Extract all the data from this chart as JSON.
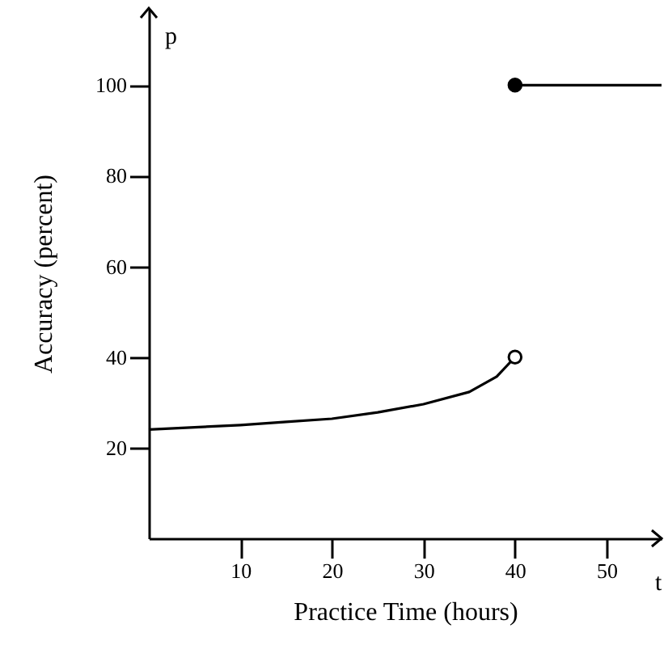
{
  "chart_data": {
    "type": "line",
    "xlabel": "Practice Time (hours)",
    "ylabel": "Accuracy (percent)",
    "annotations": [
      "p",
      "t"
    ],
    "xlim": [
      0,
      56
    ],
    "ylim": [
      0,
      117
    ],
    "xticks": [
      10,
      20,
      30,
      40,
      50
    ],
    "yticks": [
      20,
      40,
      60,
      80,
      100
    ],
    "grid": false,
    "series": [
      {
        "type": "line",
        "color": "#000000",
        "marker": "none",
        "x": [
          0,
          5,
          10,
          15,
          20,
          25,
          30,
          35,
          38,
          40
        ],
        "values": [
          24,
          24.5,
          25,
          25.7,
          26.4,
          27.8,
          29.6,
          32.3,
          35.7,
          40
        ]
      },
      {
        "type": "scatter",
        "color": "#ffffff",
        "marker": "circle",
        "x": [
          40
        ],
        "values": [
          40
        ]
      },
      {
        "type": "line",
        "color": "#000000",
        "marker": "none",
        "x": [
          40,
          56
        ],
        "values": [
          100,
          100
        ]
      },
      {
        "type": "scatter",
        "color": "#000000",
        "marker": "circle",
        "x": [
          40
        ],
        "values": [
          100
        ]
      }
    ]
  }
}
